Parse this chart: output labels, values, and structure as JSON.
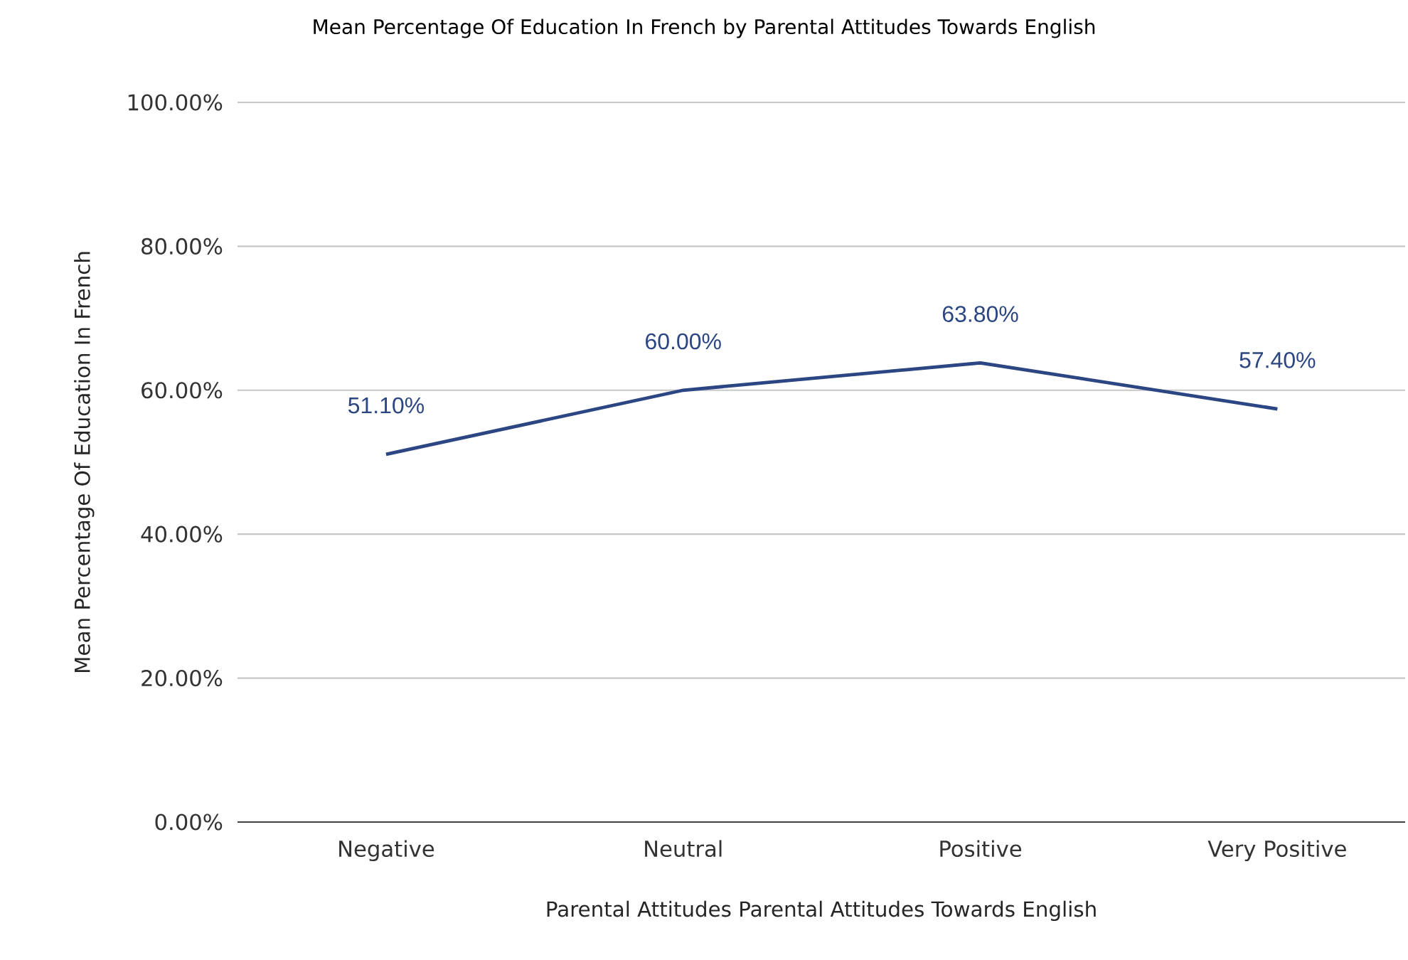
{
  "chart_data": {
    "type": "line",
    "title": "Mean Percentage Of Education In French by Parental Attitudes Towards English",
    "xlabel": "Parental Attitudes Parental Attitudes Towards English",
    "ylabel": "Mean Percentage Of Education In French",
    "categories": [
      "Negative",
      "Neutral",
      "Positive",
      "Very Positive"
    ],
    "series": [
      {
        "color": "#2b4682",
        "values": [
          51.1,
          60.0,
          63.8,
          57.4
        ],
        "value_labels": [
          "51.10%",
          "60.00%",
          "63.80%",
          "57.40%"
        ]
      }
    ],
    "ylim": [
      0,
      100
    ],
    "yticks": [
      {
        "value": 0,
        "label": "0.00%"
      },
      {
        "value": 20,
        "label": "20.00%"
      },
      {
        "value": 40,
        "label": "40.00%"
      },
      {
        "value": 60,
        "label": "60.00%"
      },
      {
        "value": 80,
        "label": "80.00%"
      },
      {
        "value": 100,
        "label": "100.00%"
      }
    ],
    "grid": "y"
  }
}
